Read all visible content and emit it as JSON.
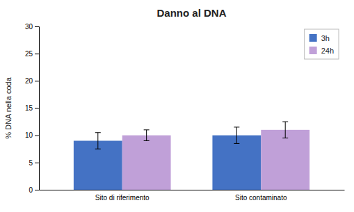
{
  "chart_data": {
    "type": "bar",
    "title": "Danno al DNA",
    "ylabel": "% DNA nella coda",
    "categories": [
      "Sito di riferimento",
      "Sito contaminato"
    ],
    "series": [
      {
        "name": "3h",
        "color": "#4472C4",
        "values": [
          9.0,
          10.0
        ],
        "errors": [
          1.5,
          1.5
        ]
      },
      {
        "name": "24h",
        "color": "#C0A0D8",
        "values": [
          10.0,
          11.0
        ],
        "errors": [
          1.0,
          1.5
        ]
      }
    ],
    "ylim": [
      0,
      30
    ],
    "yticks": [
      0,
      5,
      10,
      15,
      20,
      25,
      30
    ],
    "grid": false,
    "legend": "upper right"
  }
}
